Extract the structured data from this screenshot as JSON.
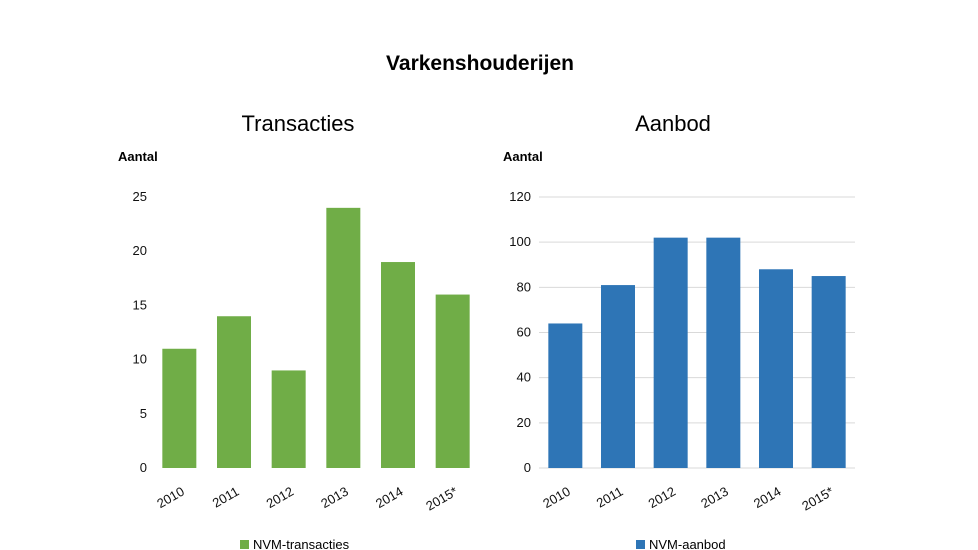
{
  "page_title": "Varkenshouderijen",
  "chart_data": [
    {
      "type": "bar",
      "title": "Transacties",
      "ylabel": "Aantal",
      "xlabel": "",
      "categories": [
        "2010",
        "2011",
        "2012",
        "2013",
        "2014",
        "2015*"
      ],
      "series": [
        {
          "name": "NVM-transacties",
          "values": [
            11,
            14,
            9,
            24,
            19,
            16
          ],
          "color": "#70ad47"
        }
      ],
      "ylim": [
        0,
        25
      ],
      "yticks": [
        0,
        5,
        10,
        15,
        20,
        25
      ],
      "grid": false,
      "legend": "bottom"
    },
    {
      "type": "bar",
      "title": "Aanbod",
      "ylabel": "Aantal",
      "xlabel": "",
      "categories": [
        "2010",
        "2011",
        "2012",
        "2013",
        "2014",
        "2015*"
      ],
      "series": [
        {
          "name": "NVM-aanbod",
          "values": [
            64,
            81,
            102,
            102,
            88,
            85
          ],
          "color": "#2e75b6"
        }
      ],
      "ylim": [
        0,
        120
      ],
      "yticks": [
        0,
        20,
        40,
        60,
        80,
        100,
        120
      ],
      "grid": true,
      "legend": "bottom"
    }
  ]
}
